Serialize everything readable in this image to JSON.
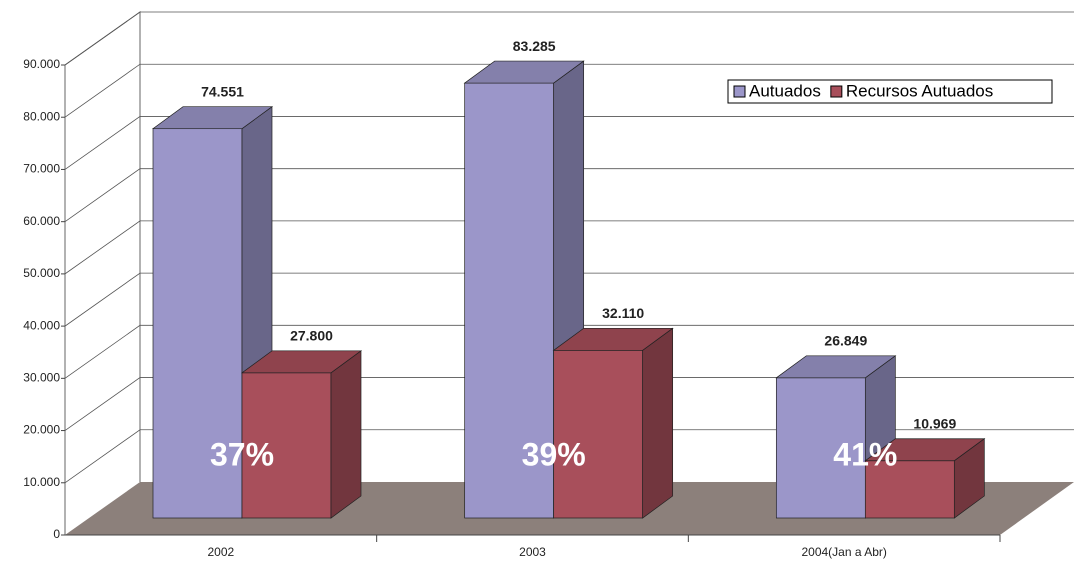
{
  "chart_data": {
    "type": "bar3d",
    "categories": [
      "2002",
      "2003",
      "2004(Jan a Abr)"
    ],
    "series": [
      {
        "name": "Autuados",
        "color": "#9b96c9",
        "values": [
          74551,
          83285,
          26849
        ],
        "value_labels": [
          "74.551",
          "83.285",
          "26.849"
        ]
      },
      {
        "name": "Recursos Autuados",
        "color": "#a84f5b",
        "values": [
          27800,
          32110,
          10969
        ],
        "value_labels": [
          "27.800",
          "32.110",
          "10.969"
        ]
      }
    ],
    "percent_labels": [
      "37%",
      "39%",
      "41%"
    ],
    "ylim": [
      0,
      90000
    ],
    "yticks": [
      0,
      {
        "value": 10000,
        "label": "10.000"
      },
      {
        "value": 20000,
        "label": "20.000"
      },
      {
        "value": 30000,
        "label": "30.000"
      },
      {
        "value": 40000,
        "label": "40.000"
      },
      {
        "value": 50000,
        "label": "50.000"
      },
      {
        "value": 60000,
        "label": "60.000"
      },
      {
        "value": 70000,
        "label": "70.000"
      },
      {
        "value": 80000,
        "label": "80.000"
      },
      {
        "value": 90000,
        "label": "90.000"
      }
    ],
    "grid": true,
    "legend": "top-right"
  }
}
